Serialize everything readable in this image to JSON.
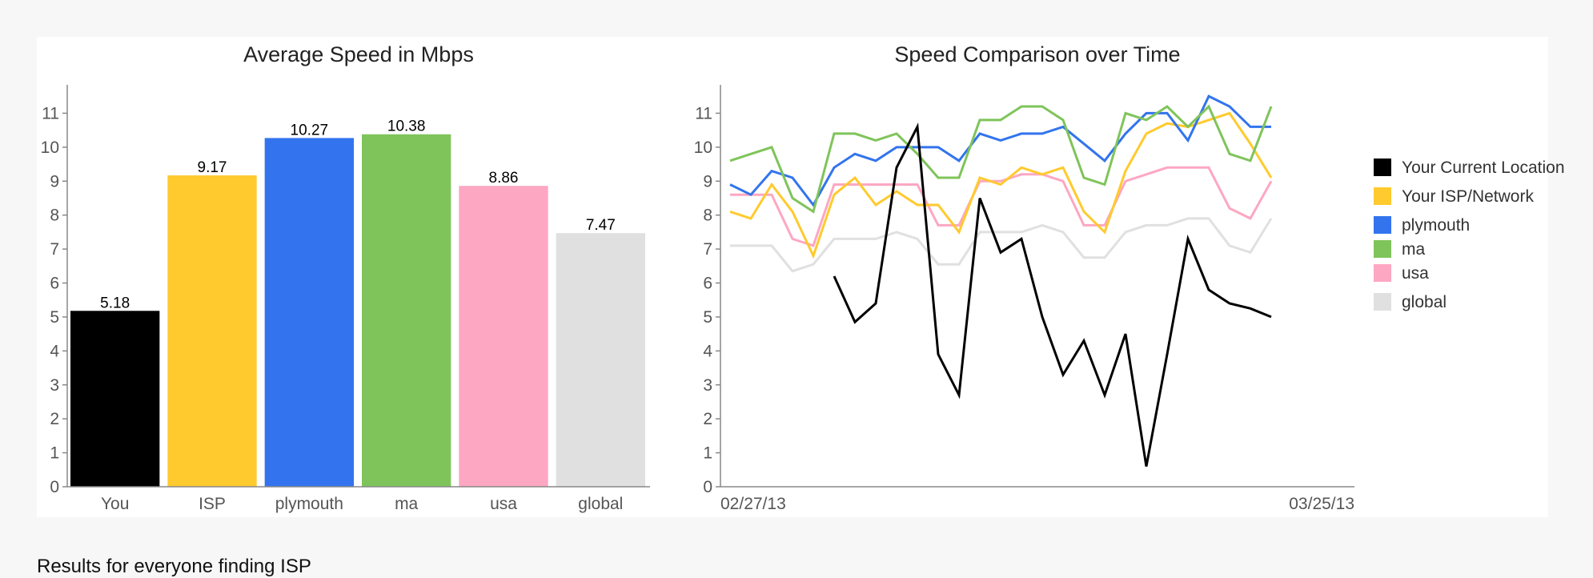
{
  "chart_data": [
    {
      "type": "bar",
      "title": "Average Speed in Mbps",
      "categories": [
        "You",
        "ISP",
        "plymouth",
        "ma",
        "usa",
        "global"
      ],
      "values": [
        5.18,
        9.17,
        10.27,
        10.38,
        8.86,
        7.47
      ],
      "value_labels": [
        "5.18",
        "9.17",
        "10.27",
        "10.38",
        "8.86",
        "7.47"
      ],
      "colors": [
        "#000000",
        "#ffca2e",
        "#3374ee",
        "#7fc45a",
        "#fda7c2",
        "#e0e0e0"
      ],
      "ylim": [
        0,
        11.6
      ],
      "yticks": [
        0,
        1,
        2,
        3,
        4,
        5,
        6,
        7,
        8,
        9,
        10,
        11
      ],
      "xlabel": "",
      "ylabel": ""
    },
    {
      "type": "line",
      "title": "Speed Comparison over Time",
      "x_start_label": "02/27/13",
      "x_end_label": "03/25/13",
      "x_count": 31,
      "ylim": [
        0,
        11.6
      ],
      "yticks": [
        0,
        1,
        2,
        3,
        4,
        5,
        6,
        7,
        8,
        9,
        10,
        11
      ],
      "legend_position": "right",
      "series": [
        {
          "name": "global",
          "color": "#e0e0e0",
          "values": [
            7.1,
            7.1,
            7.1,
            6.35,
            6.55,
            7.3,
            7.3,
            7.3,
            7.5,
            7.3,
            6.55,
            6.55,
            7.5,
            7.5,
            7.5,
            7.7,
            7.5,
            6.75,
            6.75,
            7.5,
            7.7,
            7.7,
            7.9,
            7.9,
            7.1,
            6.9,
            7.9,
            null,
            null,
            null,
            null
          ]
        },
        {
          "name": "usa",
          "color": "#fda7c2",
          "values": [
            8.6,
            8.6,
            8.6,
            7.3,
            7.1,
            8.9,
            8.9,
            8.9,
            8.9,
            8.9,
            7.7,
            7.7,
            9.0,
            9.0,
            9.2,
            9.2,
            9.0,
            7.7,
            7.7,
            9.0,
            9.2,
            9.4,
            9.4,
            9.4,
            8.2,
            7.9,
            9.0,
            null,
            null,
            null,
            null
          ]
        },
        {
          "name": "Your ISP/Network",
          "color": "#ffca2e",
          "values": [
            8.1,
            7.9,
            8.9,
            8.1,
            6.8,
            8.6,
            9.1,
            8.3,
            8.7,
            8.3,
            8.3,
            7.5,
            9.1,
            8.9,
            9.4,
            9.2,
            9.4,
            8.1,
            7.5,
            9.3,
            10.4,
            10.7,
            10.6,
            10.8,
            11.0,
            10.1,
            9.1,
            null,
            null,
            null,
            null
          ]
        },
        {
          "name": "plymouth",
          "color": "#3374ee",
          "values": [
            8.9,
            8.6,
            9.3,
            9.1,
            8.3,
            9.4,
            9.8,
            9.6,
            10.0,
            10.0,
            10.0,
            9.6,
            10.4,
            10.2,
            10.4,
            10.4,
            10.6,
            10.1,
            9.6,
            10.4,
            11.0,
            11.0,
            10.2,
            11.5,
            11.2,
            10.6,
            10.6,
            null,
            null,
            null,
            null
          ]
        },
        {
          "name": "ma",
          "color": "#7fc45a",
          "values": [
            9.6,
            9.8,
            10.0,
            8.5,
            8.1,
            10.4,
            10.4,
            10.2,
            10.4,
            9.8,
            9.1,
            9.1,
            10.8,
            10.8,
            11.2,
            11.2,
            10.8,
            9.1,
            8.9,
            11.0,
            10.8,
            11.2,
            10.6,
            11.2,
            9.8,
            9.6,
            11.2,
            null,
            null,
            null,
            null
          ]
        },
        {
          "name": "Your Current Location",
          "color": "#000000",
          "values": [
            null,
            null,
            null,
            null,
            null,
            6.2,
            4.85,
            5.4,
            9.4,
            10.6,
            3.9,
            2.7,
            8.5,
            6.9,
            7.3,
            5.0,
            3.3,
            4.3,
            2.7,
            4.5,
            0.6,
            3.9,
            7.3,
            5.8,
            5.4,
            5.25,
            5.0,
            null,
            null,
            null,
            null
          ]
        }
      ],
      "legend_order": [
        "Your Current Location",
        "Your ISP/Network",
        "plymouth",
        "ma",
        "usa",
        "global"
      ]
    }
  ],
  "footer": {
    "text": "Results for everyone finding ISP"
  }
}
